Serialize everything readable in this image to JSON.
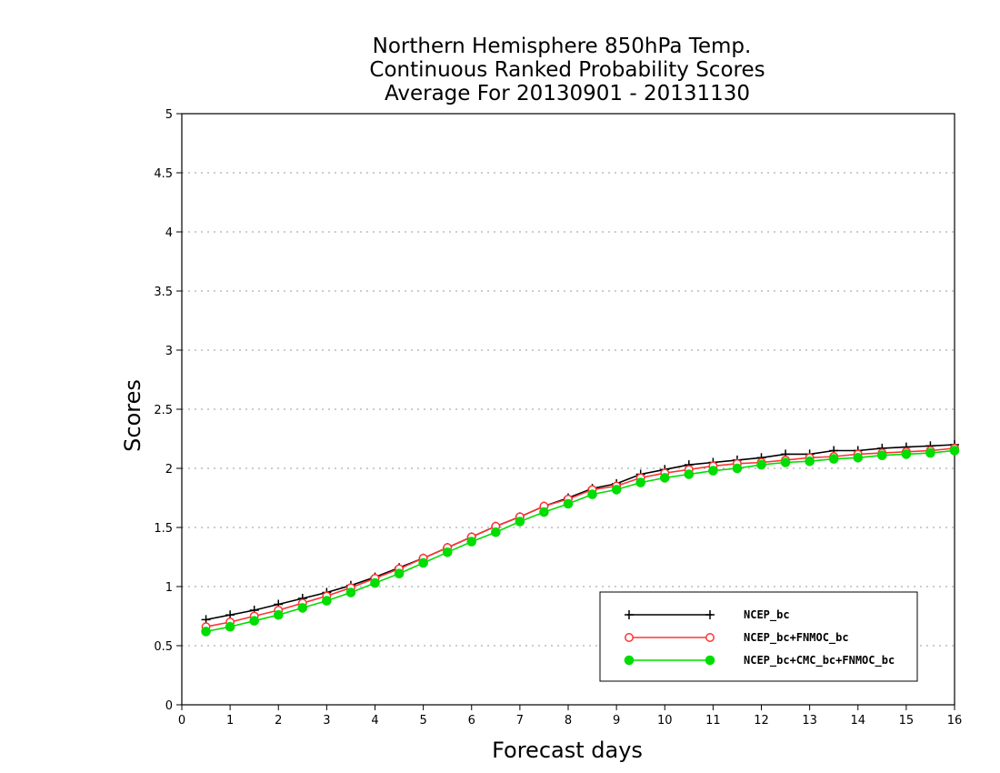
{
  "chart_data": {
    "type": "line",
    "title_lines": [
      "Northern Hemisphere 850hPa Temp.",
      "Continuous Ranked Probability Scores",
      "Average For 20130901 - 20131130"
    ],
    "xlabel": "Forecast days",
    "ylabel": "Scores",
    "xlim": [
      0,
      16
    ],
    "ylim": [
      0,
      5
    ],
    "x_ticks": [
      "0",
      "1",
      "2",
      "3",
      "4",
      "5",
      "6",
      "7",
      "8",
      "9",
      "10",
      "11",
      "12",
      "13",
      "14",
      "15",
      "16"
    ],
    "y_ticks": [
      "0",
      "0.5",
      "1",
      "1.5",
      "2",
      "2.5",
      "3",
      "3.5",
      "4",
      "4.5",
      "5"
    ],
    "grid": "horizontal dotted",
    "legend_position": "bottom-right",
    "x": [
      0.5,
      1,
      1.5,
      2,
      2.5,
      3,
      3.5,
      4,
      4.5,
      5,
      5.5,
      6,
      6.5,
      7,
      7.5,
      8,
      8.5,
      9,
      9.5,
      10,
      10.5,
      11,
      11.5,
      12,
      12.5,
      13,
      13.5,
      14,
      14.5,
      15,
      15.5,
      16
    ],
    "series": [
      {
        "name": "NCEP_bc",
        "color": "#000000",
        "marker": "plus",
        "values": [
          0.72,
          0.76,
          0.8,
          0.85,
          0.9,
          0.95,
          1.01,
          1.08,
          1.16,
          1.24,
          1.33,
          1.42,
          1.51,
          1.59,
          1.68,
          1.75,
          1.83,
          1.87,
          1.95,
          1.99,
          2.03,
          2.05,
          2.07,
          2.09,
          2.12,
          2.12,
          2.15,
          2.15,
          2.17,
          2.18,
          2.19,
          2.2
        ]
      },
      {
        "name": "NCEP_bc+FNMOC_bc",
        "color": "#ff3333",
        "marker": "open-circle",
        "values": [
          0.66,
          0.7,
          0.75,
          0.8,
          0.86,
          0.92,
          0.99,
          1.07,
          1.15,
          1.24,
          1.33,
          1.42,
          1.51,
          1.59,
          1.68,
          1.74,
          1.82,
          1.85,
          1.92,
          1.96,
          1.99,
          2.02,
          2.04,
          2.05,
          2.07,
          2.09,
          2.1,
          2.12,
          2.13,
          2.14,
          2.15,
          2.17
        ]
      },
      {
        "name": "NCEP_bc+CMC_bc+FNMOC_bc",
        "color": "#00dd00",
        "marker": "filled-circle",
        "values": [
          0.62,
          0.66,
          0.71,
          0.76,
          0.82,
          0.88,
          0.95,
          1.03,
          1.11,
          1.2,
          1.29,
          1.38,
          1.46,
          1.55,
          1.63,
          1.7,
          1.78,
          1.82,
          1.88,
          1.92,
          1.95,
          1.98,
          2.0,
          2.03,
          2.05,
          2.06,
          2.08,
          2.09,
          2.11,
          2.12,
          2.13,
          2.15
        ]
      }
    ]
  }
}
